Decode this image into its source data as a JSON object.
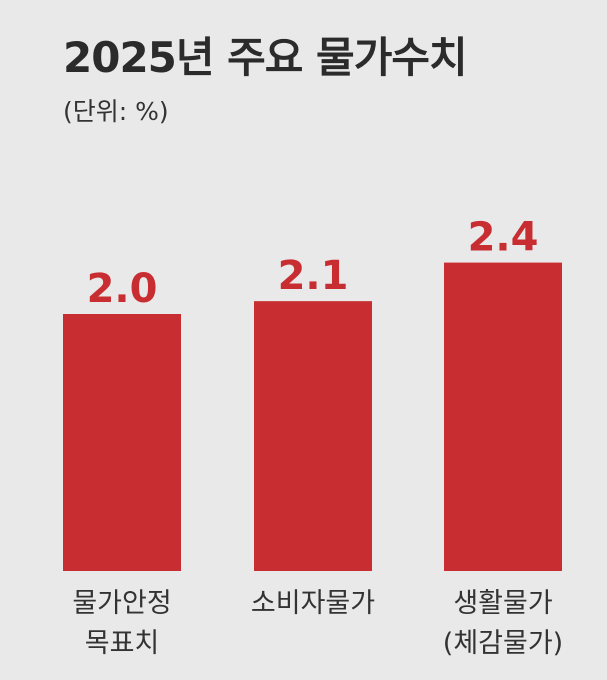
{
  "chart_data": {
    "type": "bar",
    "title": "2025년 주요 물가수치",
    "unit_note": "(단위: %)",
    "categories": [
      [
        "물가안정",
        "목표치"
      ],
      [
        "소비자물가"
      ],
      [
        "생활물가",
        "(체감물가)"
      ]
    ],
    "values": [
      2.0,
      2.1,
      2.4
    ],
    "value_labels": [
      "2.0",
      "2.1",
      "2.4"
    ],
    "bar_color": "#c82e31",
    "label_color": "#c82e31",
    "grid": false,
    "legend": "none"
  }
}
